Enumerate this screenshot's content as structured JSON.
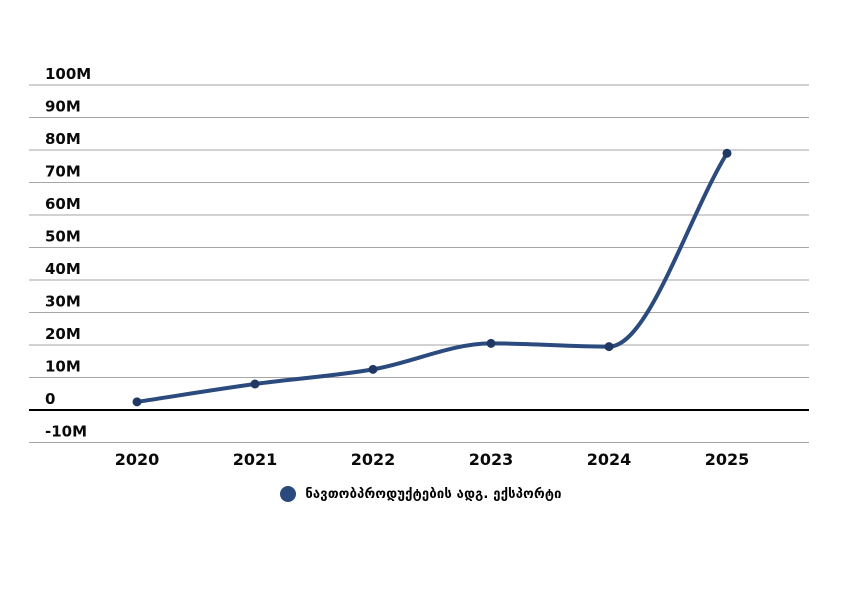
{
  "chart_data": {
    "type": "line",
    "title": "",
    "unit": "M",
    "categories": [
      "2020",
      "2021",
      "2022",
      "2023",
      "2024",
      "2025"
    ],
    "series": [
      {
        "name": "ნავთობპროდუქტების ადგ. ექსპორტი",
        "values": [
          2.5,
          8,
          12.5,
          20.5,
          19.5,
          79
        ],
        "line_color": "#2B4A7D",
        "marker_color": "#1F3864"
      }
    ],
    "ylim": [
      -10,
      100
    ],
    "yticks": [
      {
        "value": -10,
        "label": "-10M"
      },
      {
        "value": 0,
        "label": "0"
      },
      {
        "value": 10,
        "label": "10M"
      },
      {
        "value": 20,
        "label": "20M"
      },
      {
        "value": 30,
        "label": "30M"
      },
      {
        "value": 40,
        "label": "40M"
      },
      {
        "value": 50,
        "label": "50M"
      },
      {
        "value": 60,
        "label": "60M"
      },
      {
        "value": 70,
        "label": "70M"
      },
      {
        "value": 80,
        "label": "80M"
      },
      {
        "value": 90,
        "label": "90M"
      },
      {
        "value": 100,
        "label": "100M"
      }
    ],
    "grid": true,
    "gridline_color": "#A6A6A6",
    "zero_line_color": "#000000",
    "legend_position": "bottom"
  },
  "legend": {
    "items": [
      {
        "label": "ნავთობპროდუქტების ადგ. ექსპორტი",
        "color": "#2A4A7E"
      }
    ]
  }
}
